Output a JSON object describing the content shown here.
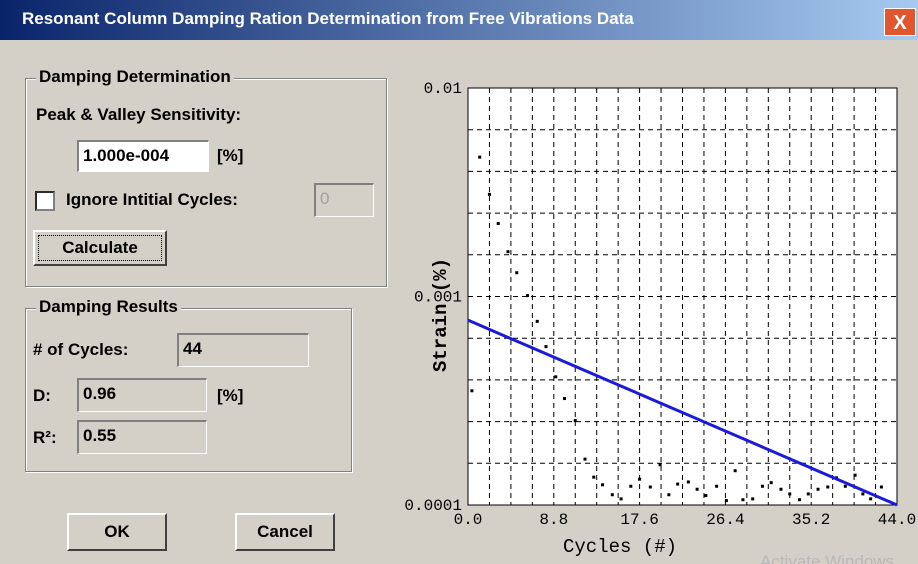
{
  "window": {
    "title": "Resonant Column Damping Ration Determination from Free Vibrations Data",
    "close": "X"
  },
  "determination": {
    "group": "Damping Determination",
    "sensitivity_label": "Peak & Valley Sensitivity:",
    "sensitivity_value": "1.000e-004",
    "sensitivity_unit": "[%]",
    "ignore_label": "Ignore Intitial Cycles:",
    "ignore_value": "0",
    "calculate": "Calculate"
  },
  "results": {
    "group": "Damping Results",
    "cycles_label": "# of Cycles:",
    "cycles_value": "44",
    "d_label": "D:",
    "d_value": "0.96",
    "d_unit": "[%]",
    "r2_label": "R²:",
    "r2_value": "0.55"
  },
  "buttons": {
    "ok": "OK",
    "cancel": "Cancel"
  },
  "watermark": "Activate Windows",
  "chart_data": {
    "type": "scatter",
    "x_label": "Cycles (#)",
    "y_label": "Strain (%)",
    "xlim": [
      0,
      44
    ],
    "ylim": [
      0.0001,
      0.01
    ],
    "log_y": true,
    "grid": true,
    "xticks": [
      {
        "value": 0,
        "label": "0.0"
      },
      8.8,
      17.6,
      26.4,
      35.2,
      {
        "value": 44,
        "label": "44.0"
      }
    ],
    "yticks": [
      0.0001,
      0.001,
      0.01
    ],
    "x": [
      0.4,
      1.2,
      2.2,
      3.1,
      4.1,
      5.0,
      6.1,
      7.1,
      8.0,
      9.0,
      9.9,
      11.0,
      12.0,
      12.9,
      13.8,
      14.8,
      15.7,
      16.7,
      17.6,
      18.7,
      19.7,
      20.6,
      21.5,
      22.6,
      23.5,
      24.4,
      25.5,
      26.5,
      27.4,
      28.2,
      29.2,
      30.2,
      31.1,
      32.1,
      33.0,
      34.0,
      34.9,
      35.9,
      36.9,
      37.8,
      38.7,
      39.7,
      40.5,
      41.3,
      42.4
    ],
    "values": [
      0.000353,
      0.00466,
      0.00309,
      0.00224,
      0.00164,
      0.0013,
      0.00101,
      0.00076,
      0.000575,
      0.000412,
      0.000324,
      0.000254,
      0.000166,
      0.000136,
      0.000125,
      0.000112,
      0.000107,
      0.000123,
      0.000133,
      0.000122,
      0.000156,
      0.000112,
      0.000126,
      0.000129,
      0.000119,
      0.000111,
      0.000123,
      0.000105,
      0.000146,
      0.000106,
      0.000107,
      0.000123,
      0.000128,
      0.000119,
      0.000113,
      0.000106,
      0.000113,
      0.000119,
      0.000122,
      0.000135,
      0.000123,
      0.000139,
      0.000113,
      0.000107,
      0.000122
    ],
    "color": "#000000",
    "fit": {
      "x": [
        0,
        44
      ],
      "values": [
        0.00077,
        0.0001
      ],
      "color": "#1a1adc"
    }
  }
}
